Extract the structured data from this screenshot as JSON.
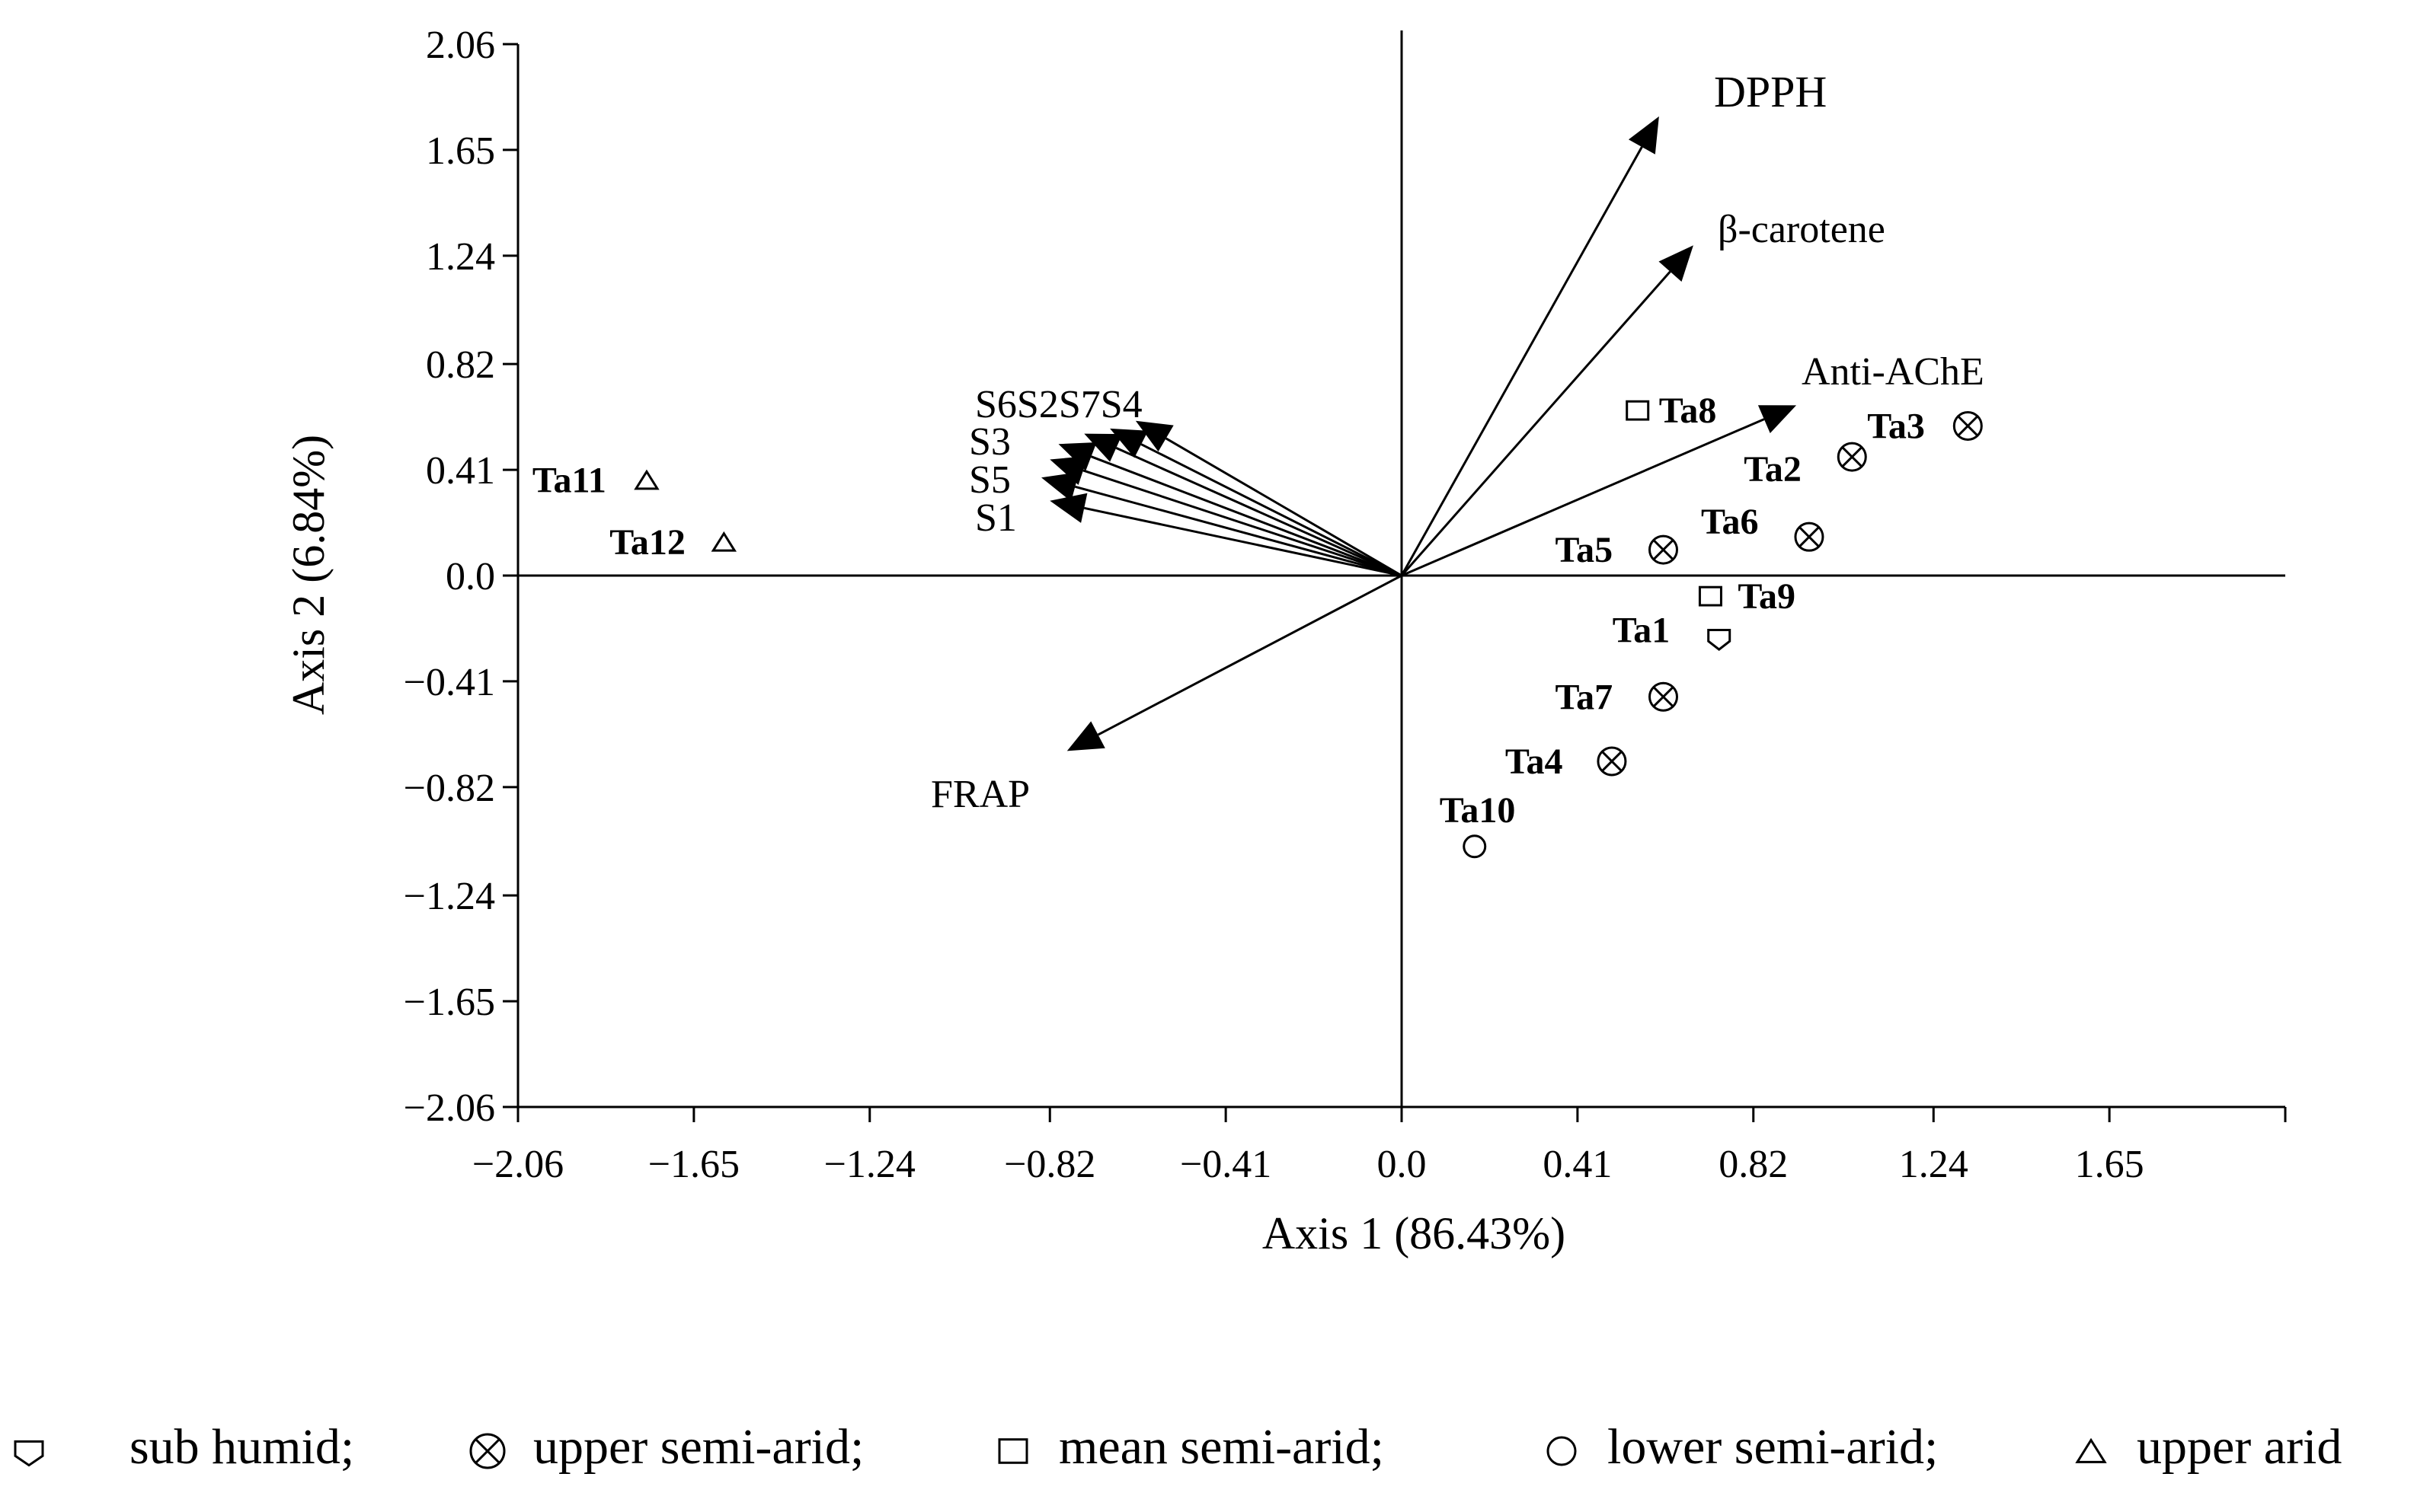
{
  "chart_data": {
    "type": "scatter",
    "subtype": "pca-biplot",
    "title": "",
    "xlabel": "Axis 1 (86.43%)",
    "ylabel": "Axis 2 (6.84%)",
    "xlim": [
      -2.06,
      2.06
    ],
    "ylim": [
      -2.06,
      2.06
    ],
    "x_ticks": [
      "−2.06",
      "−1.65",
      "−1.24",
      "−0.82",
      "−0.41",
      "0.0",
      "0.41",
      "0.82",
      "1.24",
      "1.65"
    ],
    "y_ticks": [
      "2.06",
      "1.65",
      "1.24",
      "0.82",
      "0.41",
      "0.0",
      "−0.41",
      "−0.82",
      "−1.24",
      "−1.65",
      "−2.06"
    ],
    "variables": [
      {
        "label": "DPPH",
        "x": 0.6,
        "y": 1.78
      },
      {
        "label": "β-carotene",
        "x": 0.68,
        "y": 1.28
      },
      {
        "label": "Anti-AChE",
        "x": 0.92,
        "y": 0.66
      },
      {
        "label": "FRAP",
        "x": -0.78,
        "y": -0.68
      },
      {
        "label": "S4",
        "x": -0.62,
        "y": 0.6
      },
      {
        "label": "S7",
        "x": -0.68,
        "y": 0.57
      },
      {
        "label": "S2",
        "x": -0.74,
        "y": 0.55
      },
      {
        "label": "S6",
        "x": -0.8,
        "y": 0.51
      },
      {
        "label": "S3",
        "x": -0.82,
        "y": 0.45
      },
      {
        "label": "S5",
        "x": -0.84,
        "y": 0.38
      },
      {
        "label": "S1",
        "x": -0.82,
        "y": 0.29
      }
    ],
    "variable_label_text": "S6S2S7S4",
    "series": [
      {
        "name": "sub humid",
        "marker": "shield",
        "points": [
          {
            "label": "Ta1",
            "x": 0.74,
            "y": -0.24
          }
        ]
      },
      {
        "name": "upper semi-arid",
        "marker": "circle-x",
        "points": [
          {
            "label": "Ta2",
            "x": 1.05,
            "y": 0.46
          },
          {
            "label": "Ta3",
            "x": 1.32,
            "y": 0.58
          },
          {
            "label": "Ta4",
            "x": 0.49,
            "y": -0.72
          },
          {
            "label": "Ta5",
            "x": 0.61,
            "y": 0.1
          },
          {
            "label": "Ta6",
            "x": 0.95,
            "y": 0.15
          },
          {
            "label": "Ta7",
            "x": 0.61,
            "y": -0.47
          }
        ]
      },
      {
        "name": "mean semi-arid",
        "marker": "square",
        "points": [
          {
            "label": "Ta8",
            "x": 0.55,
            "y": 0.64
          },
          {
            "label": "Ta9",
            "x": 0.72,
            "y": -0.08
          }
        ]
      },
      {
        "name": "lower semi-arid",
        "marker": "circle",
        "points": [
          {
            "label": "Ta10",
            "x": 0.17,
            "y": -1.05
          }
        ]
      },
      {
        "name": "upper arid",
        "marker": "triangle",
        "points": [
          {
            "label": "Ta11",
            "x": -1.76,
            "y": 0.37
          },
          {
            "label": "Ta12",
            "x": -1.58,
            "y": 0.13
          }
        ]
      }
    ],
    "legend": [
      {
        "marker": "shield",
        "text": "sub humid;"
      },
      {
        "marker": "circle-x",
        "text": "upper semi-arid;"
      },
      {
        "marker": "square",
        "text": "mean semi-arid;"
      },
      {
        "marker": "circle",
        "text": "lower semi-arid;"
      },
      {
        "marker": "triangle",
        "text": "upper arid"
      }
    ],
    "legend_position": "bottom",
    "grid": false
  }
}
